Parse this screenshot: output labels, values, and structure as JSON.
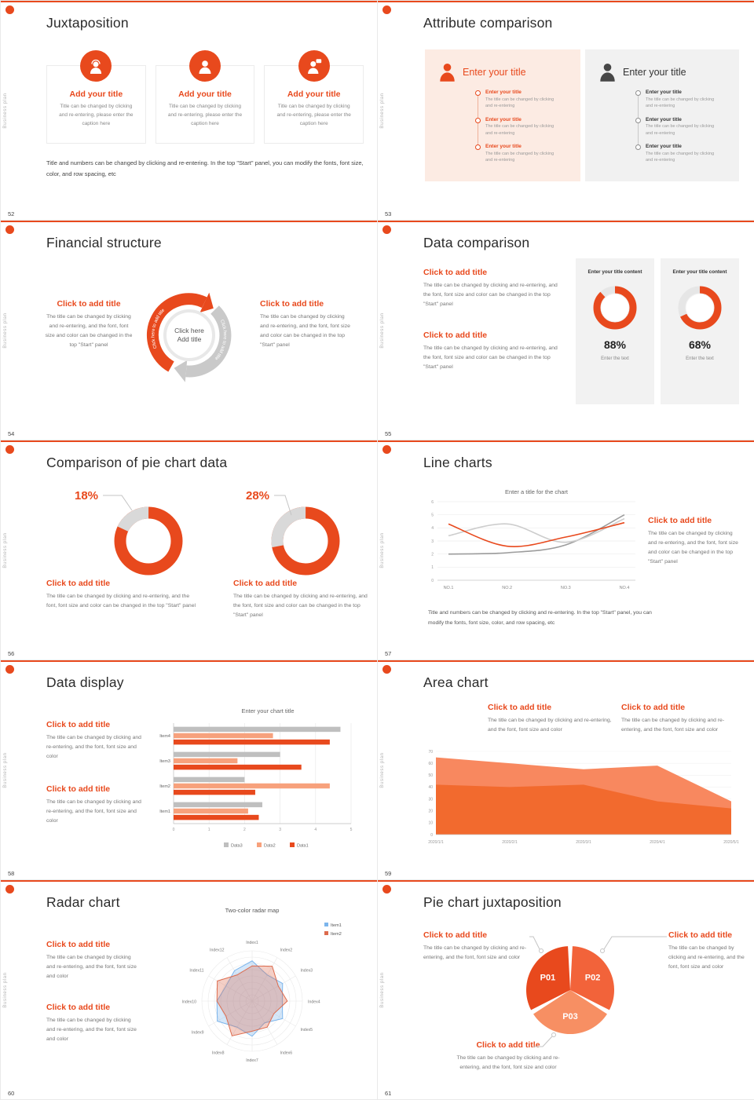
{
  "accent": "#e8491d",
  "side_text": "Business plan",
  "slides": {
    "s52": {
      "number": "52",
      "title": "Juxtaposition",
      "cards": [
        {
          "icon": "person-headset-icon",
          "title": "Add your title",
          "caption": "Title can be changed by clicking and re-entering, please enter the caption here"
        },
        {
          "icon": "person-icon",
          "title": "Add your title",
          "caption": "Title can be changed by clicking and re-entering, please enter the caption here"
        },
        {
          "icon": "person-chat-icon",
          "title": "Add your title",
          "caption": "Title can be changed by clicking and re-entering, please enter the caption here"
        }
      ],
      "footer": "Title and numbers can be changed by clicking and re-entering. In the top \"Start\" panel, you can modify the fonts, font size, color, and row spacing, etc"
    },
    "s53": {
      "number": "53",
      "title": "Attribute comparison",
      "panels": [
        {
          "header": "Enter your title",
          "items": [
            {
              "title": "Enter your title",
              "caption": "The title can be changed by clicking and re-entering"
            },
            {
              "title": "Enter your title",
              "caption": "The title can be changed by clicking and re-entering"
            },
            {
              "title": "Enter your title",
              "caption": "The title can be changed by clicking and re-entering"
            }
          ]
        },
        {
          "header": "Enter your title",
          "items": [
            {
              "title": "Enter your title",
              "caption": "The title can be changed by clicking and re-entering"
            },
            {
              "title": "Enter your title",
              "caption": "The title can be changed by clicking and re-entering"
            },
            {
              "title": "Enter your title",
              "caption": "The title can be changed by clicking and re-entering"
            }
          ]
        }
      ]
    },
    "s54": {
      "number": "54",
      "title": "Financial structure",
      "center_line1": "Click here",
      "center_line2": "Add title",
      "arc_text": "Click here to add title",
      "left": {
        "heading": "Click to add title",
        "body": "The title can be changed by clicking and re-entering, and the font, font size and color can be changed in the top \"Start\" panel"
      },
      "right": {
        "heading": "Click to add title",
        "body": "The title can be changed by clicking and re-entering, and the font, font size and color can be changed in the top \"Start\" panel"
      }
    },
    "s55": {
      "number": "55",
      "title": "Data comparison",
      "blocks": [
        {
          "heading": "Click to add title",
          "body": "The title can be changed by clicking and re-entering, and the font, font size and color can be changed in the top \"Start\" panel"
        },
        {
          "heading": "Click to add title",
          "body": "The title can be changed by clicking and re-entering, and the font, font size and color can be changed in the top \"Start\" panel"
        }
      ],
      "cards": [
        {
          "header": "Enter your title content",
          "percent": "88%",
          "footer": "Enter the text"
        },
        {
          "header": "Enter your title content",
          "percent": "68%",
          "footer": "Enter the text"
        }
      ]
    },
    "s56": {
      "number": "56",
      "title": "Comparison of pie chart data",
      "labels": [
        "18%",
        "28%"
      ],
      "blocks": [
        {
          "heading": "Click to add title",
          "body": "The title can be changed by clicking and re-entering, and the font, font size and color can be changed in the top \"Start\" panel"
        },
        {
          "heading": "Click to add title",
          "body": "The title can be changed by clicking and re-entering, and the font, font size and color can be changed in the top \"Start\" panel"
        }
      ]
    },
    "s57": {
      "number": "57",
      "title": "Line charts",
      "block": {
        "heading": "Click to add title",
        "body": "The title can be changed by clicking and re-entering, and the font, font size and color can be changed in the top \"Start\" panel"
      },
      "footer": "Title and numbers can be changed by clicking and re-entering. In the top \"Start\" panel, you can modify the fonts, font size, color, and row spacing, etc"
    },
    "s58": {
      "number": "58",
      "title": "Data display",
      "blocks": [
        {
          "heading": "Click to add title",
          "body": "The title can be changed by clicking and re-entering, and the font, font size and color"
        },
        {
          "heading": "Click to add title",
          "body": "The title can be changed by clicking and re-entering, and the font, font size and color"
        }
      ]
    },
    "s59": {
      "number": "59",
      "title": "Area chart",
      "blocks": [
        {
          "heading": "Click to add title",
          "body": "The title can be changed by clicking and re-entering, and the font, font size and color"
        },
        {
          "heading": "Click to add title",
          "body": "The title can be changed by clicking and re-entering, and the font, font size and color"
        }
      ]
    },
    "s60": {
      "number": "60",
      "title": "Radar chart",
      "blocks": [
        {
          "heading": "Click to add title",
          "body": "The title can be changed by clicking and re-entering, and the font, font size and color"
        },
        {
          "heading": "Click to add title",
          "body": "The title can be changed by clicking and re-entering, and the font, font size and color"
        }
      ]
    },
    "s61": {
      "number": "61",
      "title": "Pie chart juxtaposition",
      "blocks": [
        {
          "heading": "Click to add title",
          "body": "The title can be changed by clicking and re-entering, and the font, font size and color"
        },
        {
          "heading": "Click to add title",
          "body": "The title can be changed by clicking and re-entering, and the font, font size and color"
        },
        {
          "heading": "Click to add title",
          "body": "The title can be changed by clicking and re-entering, and the font, font size and color"
        }
      ]
    }
  },
  "chart_data": [
    {
      "id": "c55a",
      "type": "pie",
      "style": "donut",
      "percent": 88,
      "label": "88%",
      "color": "#e8491d",
      "track": "#e6e6e6"
    },
    {
      "id": "c55b",
      "type": "pie",
      "style": "donut",
      "percent": 68,
      "label": "68%",
      "color": "#e8491d",
      "track": "#e6e6e6"
    },
    {
      "id": "c56a",
      "type": "pie",
      "style": "donut-segment",
      "segment_percent": 18,
      "label": "18%",
      "color": "#e8491d",
      "segment_color": "#d9d9d9"
    },
    {
      "id": "c56b",
      "type": "pie",
      "style": "donut-segment",
      "segment_percent": 28,
      "label": "28%",
      "color": "#e8491d",
      "segment_color": "#d9d9d9"
    },
    {
      "id": "c57",
      "type": "line",
      "title": "Enter a title for the chart",
      "x": [
        "NO.1",
        "NO.2",
        "NO.3",
        "NO.4"
      ],
      "ylim": [
        0,
        6
      ],
      "yticks": [
        0,
        1,
        2,
        3,
        4,
        5,
        6
      ],
      "series": [
        {
          "name": "series-gray",
          "color": "#9c9c9c",
          "values": [
            2.0,
            2.1,
            2.7,
            5.0
          ]
        },
        {
          "name": "series-silver",
          "color": "#cdcdcd",
          "values": [
            3.4,
            4.3,
            2.9,
            4.7
          ]
        },
        {
          "name": "series-orange",
          "color": "#e8491d",
          "values": [
            4.3,
            2.6,
            3.3,
            4.4
          ]
        }
      ]
    },
    {
      "id": "c58",
      "type": "bar",
      "orientation": "horizontal",
      "title": "Enter your chart title",
      "categories": [
        "Item1",
        "Item2",
        "Item3",
        "Item4"
      ],
      "xlim": [
        0,
        5
      ],
      "xticks": [
        0,
        1,
        2,
        3,
        4,
        5
      ],
      "series": [
        {
          "name": "Data3",
          "color": "#bfbfbf",
          "values": [
            2.5,
            2.0,
            3.0,
            4.7
          ]
        },
        {
          "name": "Data2",
          "color": "#f7a17c",
          "values": [
            2.1,
            4.4,
            1.8,
            2.8
          ]
        },
        {
          "name": "Data1",
          "color": "#e8491d",
          "values": [
            2.4,
            2.3,
            3.6,
            4.4
          ]
        }
      ]
    },
    {
      "id": "c59",
      "type": "area",
      "x": [
        "2020/1/1",
        "2020/2/1",
        "2020/3/1",
        "2020/4/1",
        "2020/5/1"
      ],
      "ylim": [
        0,
        70
      ],
      "yticks": [
        0,
        10,
        20,
        30,
        40,
        50,
        60,
        70
      ],
      "series": [
        {
          "name": "series-light",
          "color": "#f8885f",
          "values": [
            65,
            60,
            55,
            58,
            28
          ]
        },
        {
          "name": "series-dark",
          "color": "#f26a2e",
          "values": [
            42,
            40,
            42,
            28,
            22
          ]
        }
      ]
    },
    {
      "id": "c60",
      "type": "radar",
      "title": "Two-color radar map",
      "rmax": 10,
      "axes": [
        "Index1",
        "Index2",
        "Index3",
        "Index4",
        "Index5",
        "Index6",
        "Index7",
        "Index8",
        "Index9",
        "Index10",
        "Index11",
        "Index12"
      ],
      "series": [
        {
          "name": "Item1",
          "color": "#7cb5ec",
          "values": [
            8,
            6,
            7,
            6,
            7,
            5,
            7,
            6,
            8,
            7,
            6,
            7
          ]
        },
        {
          "name": "Item2",
          "color": "#dd6b4d",
          "values": [
            7,
            8,
            6,
            7,
            5,
            6,
            6,
            8,
            6,
            7,
            8,
            6
          ]
        }
      ]
    },
    {
      "id": "c61",
      "type": "pie",
      "labels": [
        "P01",
        "P02",
        "P03"
      ],
      "values": [
        33.4,
        33.3,
        33.3
      ],
      "colors": [
        "#e8491d",
        "#f2633a",
        "#f78f63"
      ]
    }
  ]
}
